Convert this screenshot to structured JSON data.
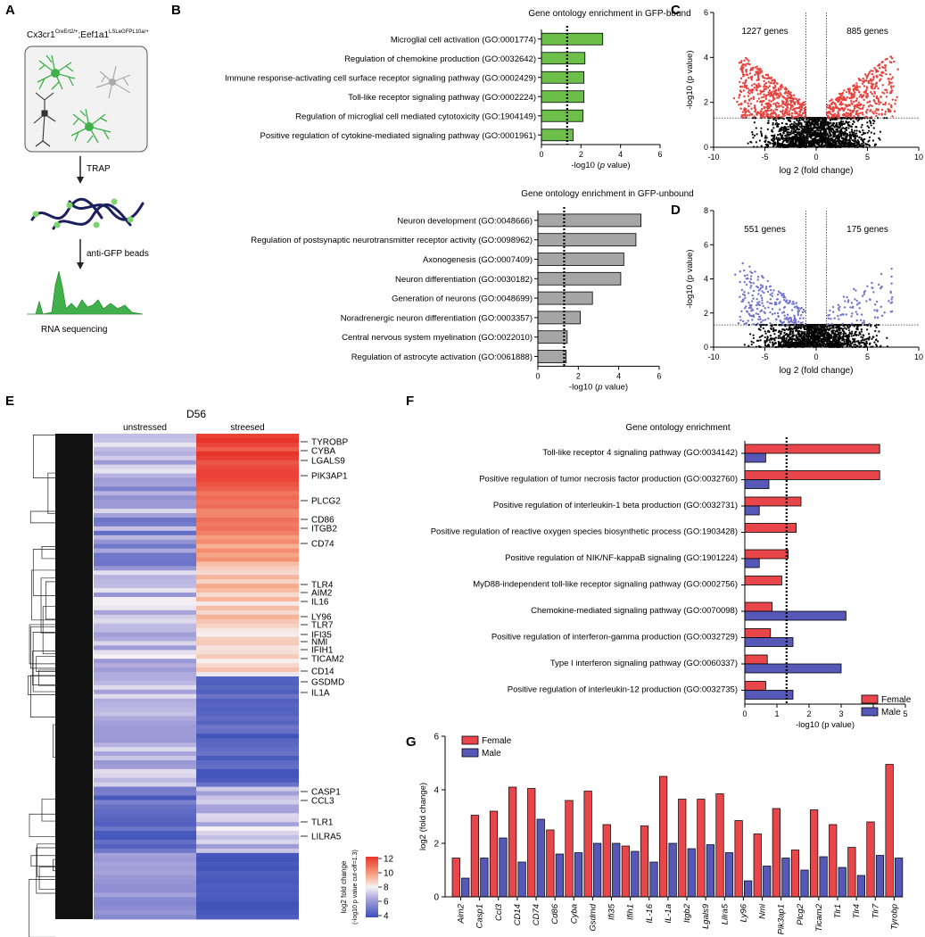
{
  "panel_letters": {
    "a": "A",
    "b": "B",
    "c": "C",
    "d": "D",
    "e": "E",
    "f": "F",
    "g": "G"
  },
  "panel_a": {
    "mouse_line": "Cx3cr1",
    "mouse_sup1": "CreErt2/+",
    "mouse_mid": ";Eef1a1",
    "mouse_sup2": "LSLeGFPL10a/+",
    "step1": "TRAP",
    "step2": "anti-GFP beads",
    "step3": "RNA sequencing",
    "colors": {
      "green": "#3fb04a",
      "grey": "#aaaaaa",
      "navy": "#1a1f5e"
    }
  },
  "chart_data": [
    {
      "id": "b_top",
      "type": "bar",
      "orientation": "horizontal",
      "title": "Gene ontology enrichment in GFP-bound",
      "categories": [
        "Microglial cell activation (GO:0001774)",
        "Regulation of chemokine production (GO:0032642)",
        "Immune response-activating cell surface receptor signaling pathway (GO:0002429)",
        "Toll-like receptor signaling pathway (GO:0002224)",
        "Regulation of microglial cell mediated cytotoxicity (GO:1904149)",
        "Positive regulation of cytokine-mediated signaling pathway (GO:0001961)"
      ],
      "values": [
        3.1,
        2.2,
        2.15,
        2.15,
        2.1,
        1.6
      ],
      "xlim": [
        0,
        6
      ],
      "xticks": [
        "0",
        "2",
        "4",
        "6"
      ],
      "xlabel_pre": "-log10 (",
      "xlabel_it": "p",
      "xlabel_post": " value)",
      "cutoff": 1.3,
      "color": "#6cc04a"
    },
    {
      "id": "b_bottom",
      "type": "bar",
      "orientation": "horizontal",
      "title": "Gene ontology enrichment in GFP-unbound",
      "categories": [
        "Neuron development (GO:0048666)",
        "Regulation of postsynaptic neurotransmitter receptor activity (GO:0098962)",
        "Axonogenesis (GO:0007409)",
        "Neuron differentiation (GO:0030182)",
        "Generation of neurons (GO:0048699)",
        "Noradrenergic neuron differentiation (GO:0003357)",
        "Central nervous system myelination (GO:0022010)",
        "Regulation of astrocyte activation (GO:0061888)"
      ],
      "values": [
        5.1,
        4.85,
        4.25,
        4.1,
        2.7,
        2.1,
        1.45,
        1.4
      ],
      "xlim": [
        0,
        6
      ],
      "xticks": [
        "0",
        "2",
        "4",
        "6"
      ],
      "xlabel_pre": "-log10 (",
      "xlabel_it": "p",
      "xlabel_post": " value)",
      "cutoff": 1.3,
      "color": "#a6a6a6"
    },
    {
      "id": "c",
      "type": "scatter",
      "xlim": [
        -10,
        10
      ],
      "ylim": [
        0,
        6
      ],
      "xticks": [
        "-10",
        "-5",
        "0",
        "5",
        "10"
      ],
      "yticks": [
        "0",
        "2",
        "4",
        "6"
      ],
      "xlabel": "log 2 (fold change)",
      "ylabel": "-log10 (p value)",
      "left_count": "1227 genes",
      "right_count": "885 genes",
      "hline": 1.3,
      "vlines": [
        -1,
        1
      ],
      "sig_color": "#e8413c",
      "seed": 7,
      "n_left": 520,
      "n_right": 430,
      "n_ns": 1800
    },
    {
      "id": "d",
      "type": "scatter",
      "xlim": [
        -10,
        10
      ],
      "ylim": [
        0,
        8
      ],
      "xticks": [
        "-10",
        "-5",
        "0",
        "5",
        "10"
      ],
      "yticks": [
        "0",
        "2",
        "4",
        "6",
        "8"
      ],
      "xlabel": "log 2 (fold change)",
      "ylabel": "-log10 (p value)",
      "left_count": "551 genes",
      "right_count": "175 genes",
      "hline": 1.3,
      "vlines": [
        -1,
        1
      ],
      "sig_color": "#6f74cc",
      "seed": 21,
      "n_left": 230,
      "n_right": 90,
      "n_ns": 1500
    },
    {
      "id": "e",
      "type": "heatmap",
      "title": "D56",
      "columns": [
        "unstressed",
        "streesed"
      ],
      "gene_labels": [
        "TYROBP",
        "CYBA",
        "LGALS9",
        "PIK3AP1",
        "PLCG2",
        "CD86",
        "ITGB2",
        "CD74",
        "TLR4",
        "AIM2",
        "IL16",
        "LY96",
        "TLR7",
        "IFI35",
        "NMI",
        "IFIH1",
        "TICAM2",
        "CD14",
        "GSDMD",
        "IL1A",
        "CASP1",
        "CCL3",
        "TLR1",
        "LILRA5"
      ],
      "colorbar_ticks": [
        "12",
        "10",
        "8",
        "6",
        "4"
      ],
      "colorbar_label": "log2 fold change",
      "colorbar_sublabel": "(-log10 p value cut-off=1.3)",
      "clim": [
        4,
        12
      ]
    },
    {
      "id": "f",
      "type": "bar",
      "orientation": "horizontal",
      "title": "Gene ontology enrichment",
      "categories": [
        "Toll-like receptor 4 signaling pathway (GO:0034142)",
        "Positive regulation of tumor necrosis factor production (GO:0032760)",
        "Positive regulation of interleukin-1 beta production (GO:0032731)",
        "Positive regulation of reactive oxygen species biosynthetic process (GO:1903428)",
        "Positive regulation of NIK/NF-kappaB signaling (GO:1901224)",
        "MyD88-independent toll-like receptor signaling pathway (GO:0002756)",
        "Chemokine-mediated signaling pathway (GO:0070098)",
        "Positive regulation of interferon-gamma production (GO:0032729)",
        "Type I interferon signaling pathway (GO:0060337)",
        "Positive regulation of interleukin-12 production (GO:0032735)"
      ],
      "series": [
        {
          "name": "Female",
          "color": "#e8464a",
          "values": [
            4.2,
            4.2,
            1.75,
            1.6,
            1.35,
            1.15,
            0.85,
            0.8,
            0.7,
            0.65
          ]
        },
        {
          "name": "Male",
          "color": "#5658b8",
          "values": [
            0.65,
            0.75,
            0.45,
            0,
            0.45,
            0,
            3.15,
            1.5,
            3.0,
            1.5
          ]
        }
      ],
      "xlim": [
        0,
        5
      ],
      "xticks": [
        "0",
        "1",
        "2",
        "3",
        "4",
        "5"
      ],
      "xlabel": "-log10 (p value)",
      "cutoff": 1.3
    },
    {
      "id": "g",
      "type": "bar",
      "categories": [
        "Aim2",
        "Casp1",
        "Ccl3",
        "CD14",
        "CD74",
        "Cd86",
        "Cyba",
        "Gsdmd",
        "Ifi35",
        "Ifih1",
        "IL-16",
        "IL-1a",
        "Itgb2",
        "Lgals9",
        "Lilra5",
        "Ly96",
        "Nmi",
        "Pik3ap1",
        "Plcg2",
        "Ticam2",
        "Tlr1",
        "Tlr4",
        "Tlr7",
        "Tyrobp"
      ],
      "series": [
        {
          "name": "Female",
          "color": "#e8464a",
          "values": [
            1.45,
            3.05,
            3.2,
            4.1,
            4.05,
            2.5,
            3.6,
            3.95,
            2.7,
            1.9,
            2.65,
            4.5,
            3.65,
            3.65,
            3.85,
            2.85,
            2.35,
            3.3,
            1.75,
            3.25,
            2.7,
            1.85,
            2.8,
            4.95
          ]
        },
        {
          "name": "Male",
          "color": "#5658b8",
          "values": [
            0.7,
            1.45,
            2.2,
            1.3,
            2.9,
            1.6,
            1.65,
            2.0,
            2.0,
            1.7,
            1.3,
            2.0,
            1.8,
            1.95,
            1.65,
            0.6,
            1.15,
            1.45,
            1.0,
            1.5,
            1.1,
            0.8,
            1.55,
            1.45
          ]
        }
      ],
      "ylim": [
        0,
        6
      ],
      "yticks": [
        "0",
        "2",
        "4",
        "6"
      ],
      "ylabel": "log2 (fold change)"
    }
  ]
}
